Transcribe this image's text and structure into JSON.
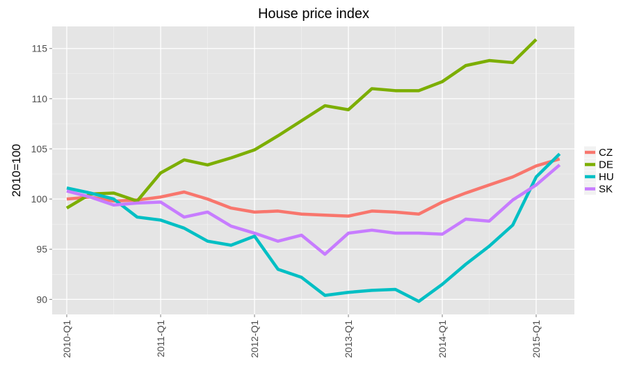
{
  "chart_data": {
    "type": "line",
    "title": "House price index",
    "xlabel": "",
    "ylabel": "2010=100",
    "x_ticks": [
      "2010-Q1",
      "2011-Q1",
      "2012-Q1",
      "2013-Q1",
      "2014-Q1",
      "2015-Q1"
    ],
    "y_ticks": [
      90,
      95,
      100,
      105,
      110,
      115
    ],
    "ylim": [
      88.5,
      117.2
    ],
    "grid": true,
    "legend_position": "right",
    "x": [
      "2010-Q1",
      "2010-Q2",
      "2010-Q3",
      "2010-Q4",
      "2011-Q1",
      "2011-Q2",
      "2011-Q3",
      "2011-Q4",
      "2012-Q1",
      "2012-Q2",
      "2012-Q3",
      "2012-Q4",
      "2013-Q1",
      "2013-Q2",
      "2013-Q3",
      "2013-Q4",
      "2014-Q1",
      "2014-Q2",
      "2014-Q3",
      "2014-Q4",
      "2015-Q1",
      "2015-Q2"
    ],
    "series": [
      {
        "name": "CZ",
        "color": "#F8766D",
        "values": [
          100.0,
          100.2,
          99.8,
          99.9,
          100.2,
          100.7,
          100.0,
          99.1,
          98.7,
          98.8,
          98.5,
          98.4,
          98.3,
          98.8,
          98.7,
          98.5,
          99.7,
          100.6,
          101.4,
          102.2,
          103.3,
          104.0
        ]
      },
      {
        "name": "DE",
        "color": "#7CAE00",
        "values": [
          99.1,
          100.5,
          100.6,
          99.8,
          102.6,
          103.9,
          103.4,
          104.1,
          104.9,
          106.3,
          107.8,
          109.3,
          108.9,
          111.0,
          110.8,
          110.8,
          111.7,
          113.3,
          113.8,
          113.6,
          115.9,
          null
        ]
      },
      {
        "name": "HU",
        "color": "#00BFC4",
        "values": [
          101.1,
          100.6,
          100.0,
          98.2,
          97.9,
          97.1,
          95.8,
          95.4,
          96.3,
          93.0,
          92.2,
          90.4,
          90.7,
          90.9,
          91.0,
          89.8,
          91.5,
          93.5,
          95.3,
          97.4,
          102.2,
          104.5
        ]
      },
      {
        "name": "SK",
        "color": "#C77CFF",
        "values": [
          100.8,
          100.2,
          99.4,
          99.6,
          99.7,
          98.2,
          98.7,
          97.3,
          96.6,
          95.8,
          96.4,
          94.5,
          96.6,
          96.9,
          96.6,
          96.6,
          96.5,
          98.0,
          97.8,
          99.9,
          101.4,
          103.4
        ]
      }
    ]
  }
}
